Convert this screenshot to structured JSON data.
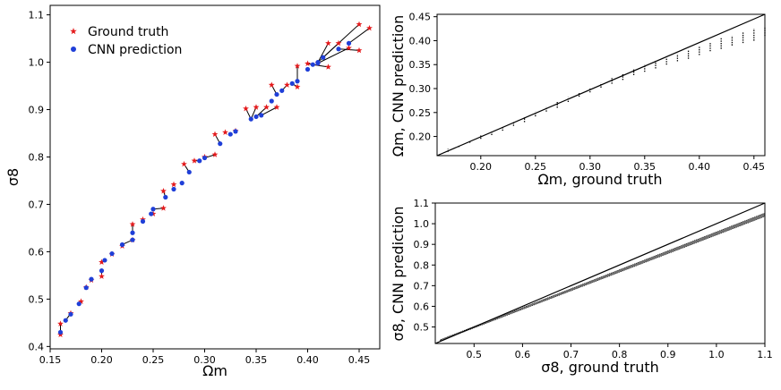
{
  "colors": {
    "ground_truth": "#e41a1c",
    "cnn": "#1f3fd8",
    "axis": "#000000",
    "text": "#000000"
  },
  "chart_data": [
    {
      "id": "scatter-sigma8-vs-omegam",
      "type": "scatter",
      "title": "",
      "xlabel": "Ωm",
      "ylabel": "σ8",
      "xlim": [
        0.15,
        0.47
      ],
      "ylim": [
        0.395,
        1.12
      ],
      "xticks": [
        0.15,
        0.2,
        0.25,
        0.3,
        0.35,
        0.4,
        0.45
      ],
      "xtick_labels": [
        "0.15",
        "0.20",
        "0.25",
        "0.30",
        "0.35",
        "0.40",
        "0.45"
      ],
      "yticks": [
        0.4,
        0.5,
        0.6,
        0.7,
        0.8,
        0.9,
        1.0,
        1.1
      ],
      "ytick_labels": [
        "0.4",
        "0.5",
        "0.6",
        "0.7",
        "0.8",
        "0.9",
        "1.0",
        "1.1"
      ],
      "legend": {
        "position": "top-left",
        "entries": [
          "Ground truth",
          "CNN prediction"
        ]
      },
      "series": [
        {
          "name": "Ground truth",
          "marker": "star",
          "points": [
            [
              0.16,
              0.448
            ],
            [
              0.16,
              0.425
            ],
            [
              0.17,
              0.47
            ],
            [
              0.18,
              0.495
            ],
            [
              0.185,
              0.525
            ],
            [
              0.19,
              0.54
            ],
            [
              0.2,
              0.548
            ],
            [
              0.2,
              0.578
            ],
            [
              0.21,
              0.595
            ],
            [
              0.22,
              0.612
            ],
            [
              0.23,
              0.625
            ],
            [
              0.23,
              0.658
            ],
            [
              0.24,
              0.668
            ],
            [
              0.25,
              0.68
            ],
            [
              0.26,
              0.692
            ],
            [
              0.26,
              0.728
            ],
            [
              0.27,
              0.742
            ],
            [
              0.28,
              0.785
            ],
            [
              0.29,
              0.792
            ],
            [
              0.3,
              0.8
            ],
            [
              0.31,
              0.805
            ],
            [
              0.31,
              0.848
            ],
            [
              0.32,
              0.852
            ],
            [
              0.33,
              0.855
            ],
            [
              0.34,
              0.902
            ],
            [
              0.35,
              0.905
            ],
            [
              0.36,
              0.905
            ],
            [
              0.37,
              0.905
            ],
            [
              0.365,
              0.952
            ],
            [
              0.38,
              0.952
            ],
            [
              0.39,
              0.948
            ],
            [
              0.39,
              0.992
            ],
            [
              0.4,
              0.997
            ],
            [
              0.41,
              0.998
            ],
            [
              0.42,
              0.99
            ],
            [
              0.42,
              1.04
            ],
            [
              0.43,
              1.04
            ],
            [
              0.44,
              1.03
            ],
            [
              0.45,
              1.08
            ],
            [
              0.45,
              1.025
            ],
            [
              0.46,
              1.072
            ]
          ]
        },
        {
          "name": "CNN prediction",
          "marker": "circle",
          "points": [
            [
              0.16,
              0.43
            ],
            [
              0.165,
              0.455
            ],
            [
              0.17,
              0.468
            ],
            [
              0.178,
              0.49
            ],
            [
              0.185,
              0.524
            ],
            [
              0.19,
              0.542
            ],
            [
              0.2,
              0.56
            ],
            [
              0.203,
              0.582
            ],
            [
              0.21,
              0.596
            ],
            [
              0.22,
              0.615
            ],
            [
              0.23,
              0.625
            ],
            [
              0.23,
              0.64
            ],
            [
              0.24,
              0.664
            ],
            [
              0.248,
              0.68
            ],
            [
              0.25,
              0.69
            ],
            [
              0.262,
              0.715
            ],
            [
              0.27,
              0.732
            ],
            [
              0.278,
              0.745
            ],
            [
              0.285,
              0.768
            ],
            [
              0.295,
              0.792
            ],
            [
              0.3,
              0.798
            ],
            [
              0.315,
              0.828
            ],
            [
              0.325,
              0.848
            ],
            [
              0.33,
              0.854
            ],
            [
              0.345,
              0.88
            ],
            [
              0.35,
              0.885
            ],
            [
              0.355,
              0.888
            ],
            [
              0.365,
              0.918
            ],
            [
              0.37,
              0.932
            ],
            [
              0.375,
              0.94
            ],
            [
              0.385,
              0.955
            ],
            [
              0.39,
              0.96
            ],
            [
              0.4,
              0.985
            ],
            [
              0.405,
              0.995
            ],
            [
              0.41,
              1.0
            ],
            [
              0.415,
              1.01
            ],
            [
              0.43,
              1.028
            ],
            [
              0.44,
              1.04
            ],
            [
              0.41,
              0.998
            ]
          ]
        }
      ],
      "links": [
        [
          0.16,
          0.448,
          0.16,
          0.43
        ],
        [
          0.17,
          0.47,
          0.165,
          0.455
        ],
        [
          0.2,
          0.548,
          0.2,
          0.56
        ],
        [
          0.22,
          0.612,
          0.22,
          0.615
        ],
        [
          0.23,
          0.625,
          0.22,
          0.615
        ],
        [
          0.23,
          0.658,
          0.23,
          0.64
        ],
        [
          0.26,
          0.692,
          0.25,
          0.69
        ],
        [
          0.26,
          0.728,
          0.262,
          0.715
        ],
        [
          0.28,
          0.785,
          0.285,
          0.768
        ],
        [
          0.29,
          0.792,
          0.295,
          0.792
        ],
        [
          0.31,
          0.805,
          0.3,
          0.798
        ],
        [
          0.31,
          0.848,
          0.315,
          0.828
        ],
        [
          0.34,
          0.902,
          0.345,
          0.88
        ],
        [
          0.35,
          0.905,
          0.345,
          0.88
        ],
        [
          0.36,
          0.905,
          0.35,
          0.885
        ],
        [
          0.37,
          0.905,
          0.355,
          0.888
        ],
        [
          0.365,
          0.952,
          0.37,
          0.932
        ],
        [
          0.38,
          0.952,
          0.375,
          0.94
        ],
        [
          0.39,
          0.948,
          0.385,
          0.955
        ],
        [
          0.39,
          0.992,
          0.39,
          0.96
        ],
        [
          0.4,
          0.997,
          0.405,
          0.995
        ],
        [
          0.42,
          0.99,
          0.405,
          0.995
        ],
        [
          0.42,
          1.04,
          0.41,
          1.0
        ],
        [
          0.43,
          1.04,
          0.415,
          1.01
        ],
        [
          0.44,
          1.03,
          0.41,
          0.998
        ],
        [
          0.45,
          1.08,
          0.41,
          1.0
        ],
        [
          0.45,
          1.025,
          0.43,
          1.028
        ],
        [
          0.46,
          1.072,
          0.44,
          1.04
        ]
      ]
    },
    {
      "id": "omegam-cnn-vs-truth",
      "type": "scatter",
      "title": "",
      "xlabel": "Ωm,  ground truth",
      "ylabel": "Ωm,  CNN prediction",
      "xlim": [
        0.16,
        0.46
      ],
      "ylim": [
        0.16,
        0.455
      ],
      "xticks": [
        0.2,
        0.25,
        0.3,
        0.35,
        0.4,
        0.45
      ],
      "xtick_labels": [
        "0.20",
        "0.25",
        "0.30",
        "0.35",
        "0.40",
        "0.45"
      ],
      "yticks": [
        0.2,
        0.25,
        0.3,
        0.35,
        0.4,
        0.45
      ],
      "ytick_labels": [
        "0.20",
        "0.25",
        "0.30",
        "0.35",
        "0.40",
        "0.45"
      ],
      "diagonal": [
        [
          0.16,
          0.16
        ],
        [
          0.46,
          0.46
        ]
      ],
      "columns_x": [
        0.17,
        0.18,
        0.19,
        0.2,
        0.21,
        0.22,
        0.23,
        0.24,
        0.25,
        0.26,
        0.27,
        0.28,
        0.29,
        0.3,
        0.31,
        0.32,
        0.33,
        0.34,
        0.35,
        0.36,
        0.37,
        0.38,
        0.39,
        0.4,
        0.41,
        0.42,
        0.43,
        0.44,
        0.45,
        0.46
      ],
      "columns_ymin": [
        0.168,
        0.178,
        0.187,
        0.195,
        0.203,
        0.212,
        0.222,
        0.23,
        0.242,
        0.252,
        0.26,
        0.272,
        0.283,
        0.292,
        0.302,
        0.31,
        0.318,
        0.328,
        0.335,
        0.342,
        0.35,
        0.357,
        0.362,
        0.37,
        0.378,
        0.383,
        0.39,
        0.395,
        0.4,
        0.41
      ],
      "columns_ymax": [
        0.174,
        0.182,
        0.19,
        0.202,
        0.21,
        0.22,
        0.23,
        0.24,
        0.252,
        0.262,
        0.272,
        0.282,
        0.292,
        0.302,
        0.312,
        0.322,
        0.33,
        0.34,
        0.35,
        0.358,
        0.365,
        0.372,
        0.38,
        0.387,
        0.395,
        0.405,
        0.41,
        0.418,
        0.425,
        0.428
      ]
    },
    {
      "id": "sigma8-cnn-vs-truth",
      "type": "scatter",
      "title": "",
      "xlabel": "σ8,  ground truth",
      "ylabel": "σ8,  CNN prediction",
      "xlim": [
        0.42,
        1.1
      ],
      "ylim": [
        0.42,
        1.1
      ],
      "xticks": [
        0.5,
        0.6,
        0.7,
        0.8,
        0.9,
        1.0,
        1.1
      ],
      "xtick_labels": [
        "0.5",
        "0.6",
        "0.7",
        "0.8",
        "0.9",
        "1.0",
        "1.1"
      ],
      "yticks": [
        0.5,
        0.6,
        0.7,
        0.8,
        0.9,
        1.0,
        1.1
      ],
      "ytick_labels": [
        "0.5",
        "0.6",
        "0.7",
        "0.8",
        "0.9",
        "1.0",
        "1.1"
      ],
      "diagonal": [
        [
          0.42,
          0.42
        ],
        [
          1.1,
          1.1
        ]
      ],
      "band": {
        "x0": 0.43,
        "x1": 1.1,
        "y_low_at_x0": 0.432,
        "y_low_at_x1": 1.035,
        "y_high_at_x0": 0.438,
        "y_high_at_x1": 1.052
      }
    }
  ]
}
